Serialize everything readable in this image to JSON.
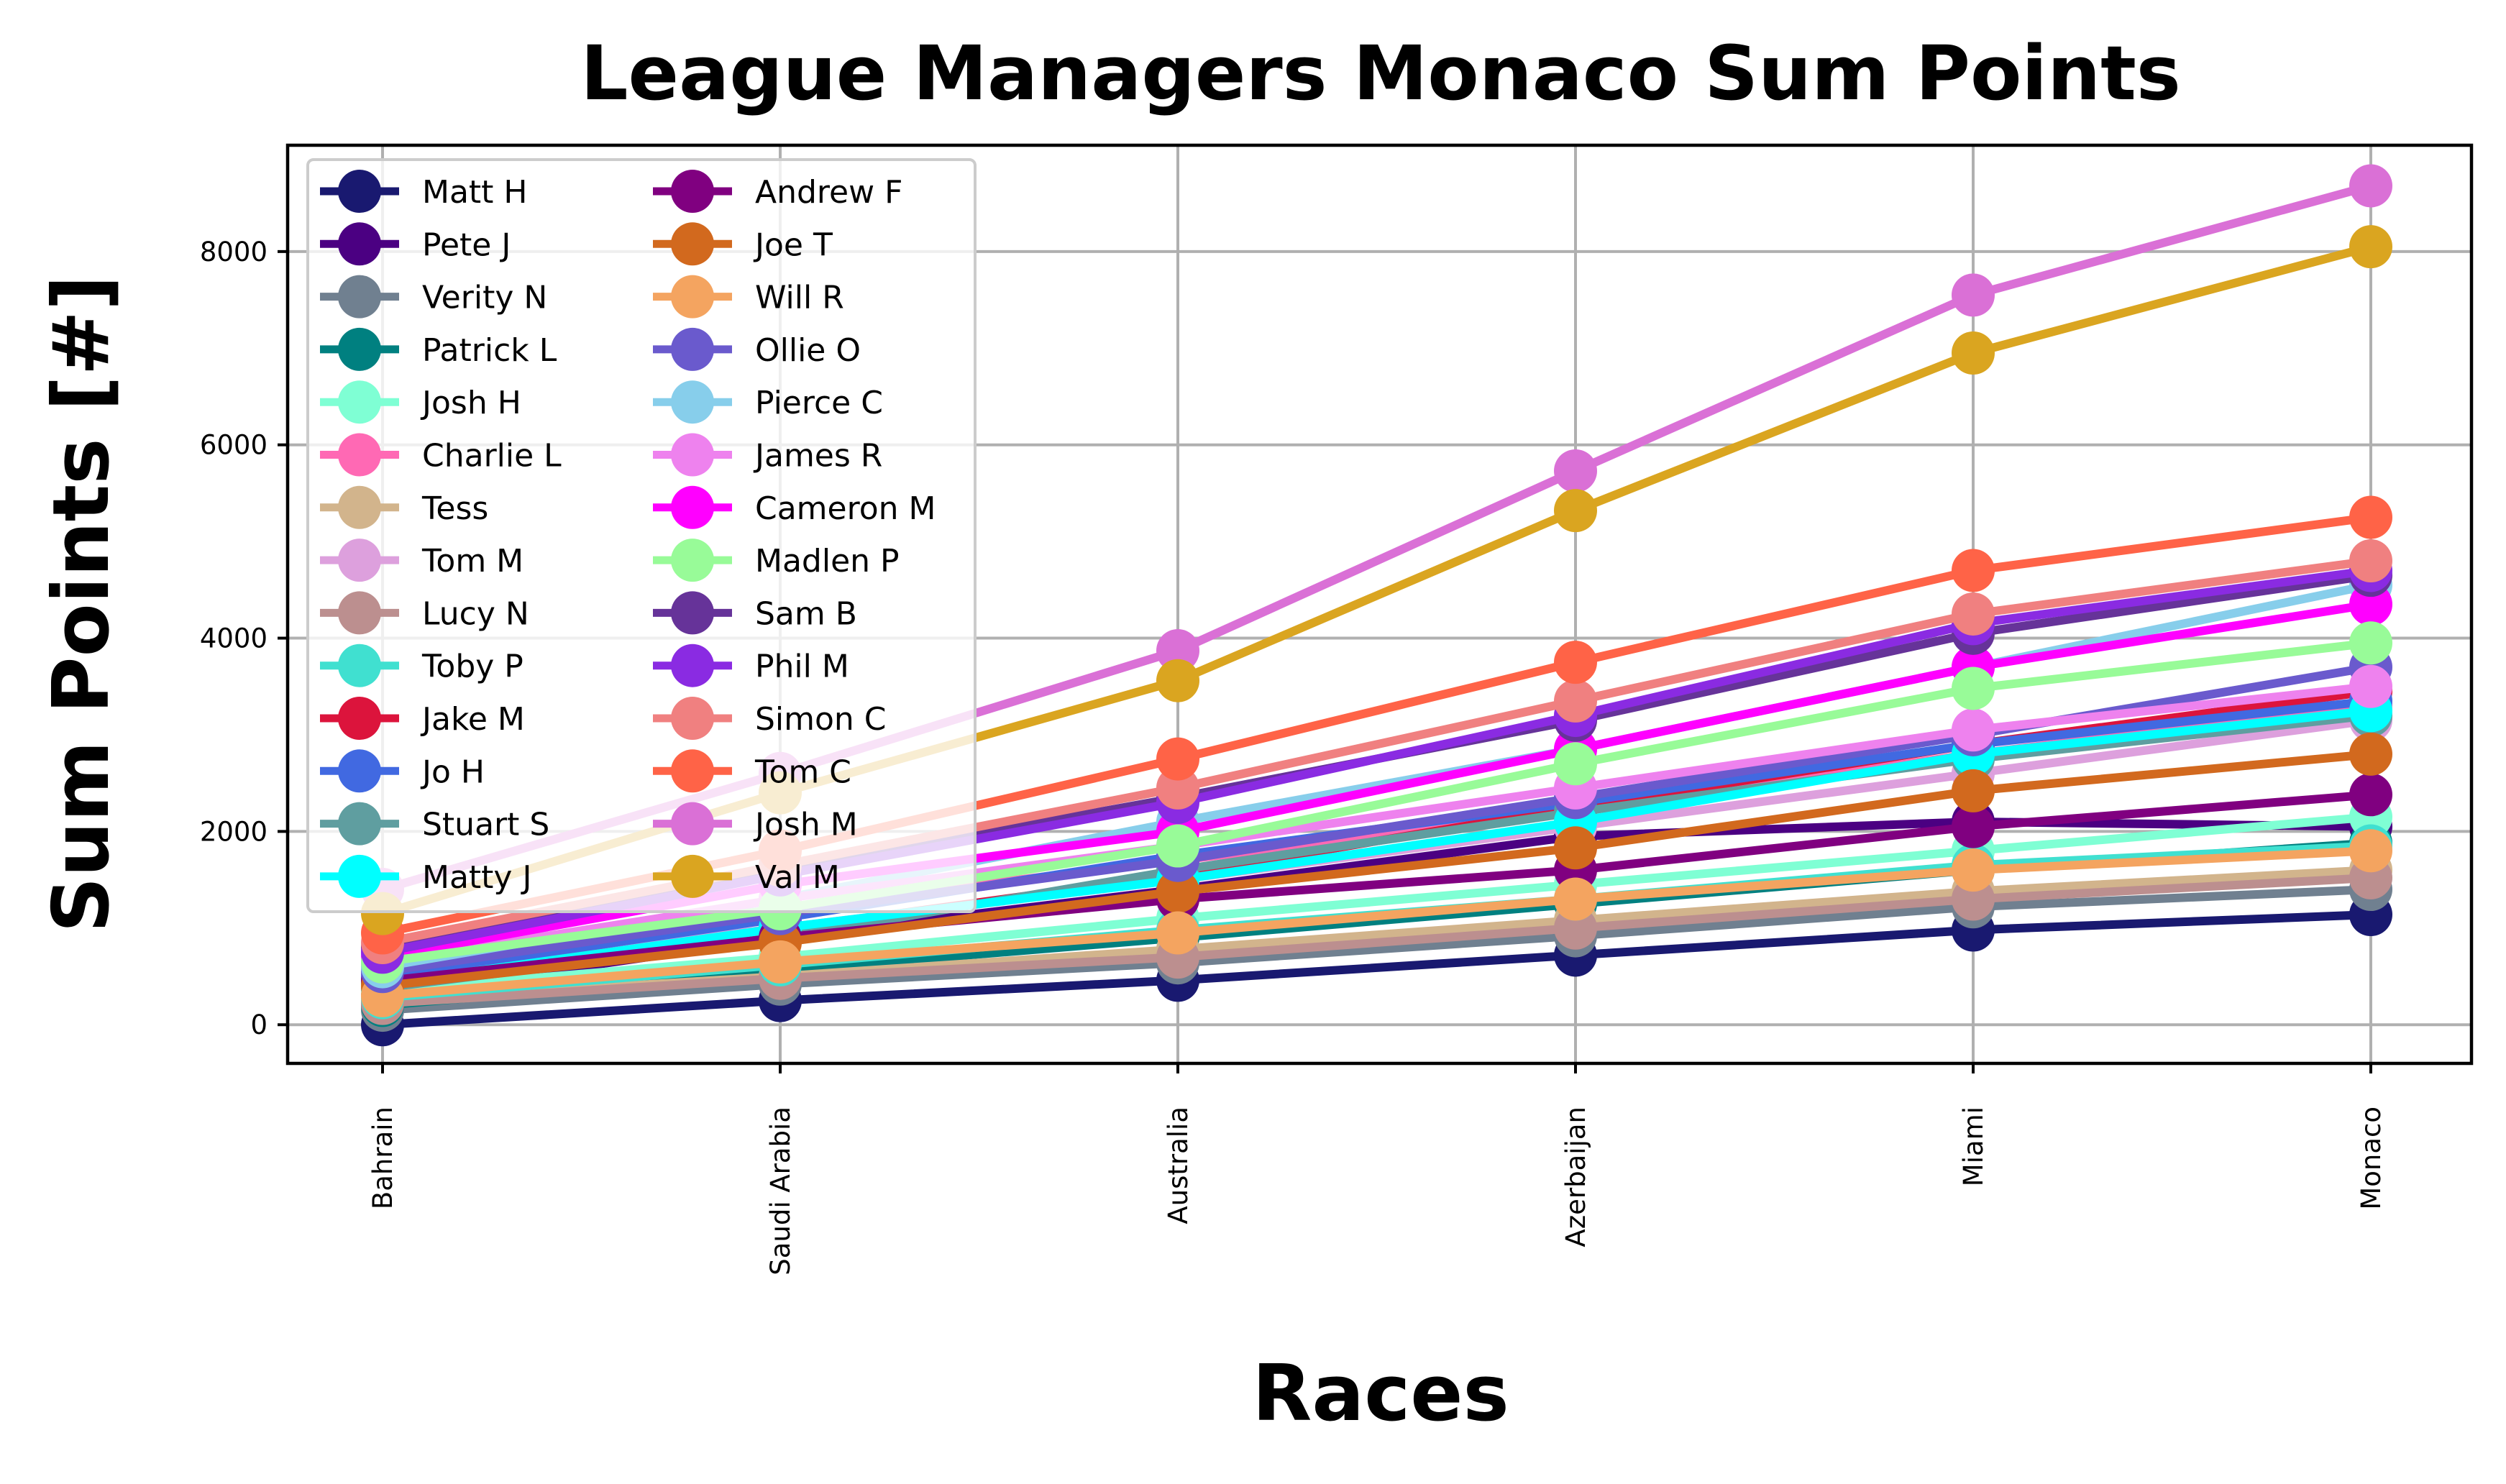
{
  "chart_data": {
    "type": "line",
    "title": "League Managers Monaco Sum Points",
    "xlabel": "Races",
    "ylabel": "Sum Points [#]",
    "categories": [
      "Bahrain",
      "Saudi Arabia",
      "Australia",
      "Azerbaijan",
      "Miami",
      "Monaco"
    ],
    "ylim": [
      -400,
      9100
    ],
    "yticks": [
      0,
      2000,
      4000,
      6000,
      8000
    ],
    "ytick_labels": [
      "0",
      "2000",
      "4000",
      "6000",
      "8000"
    ],
    "grid": true,
    "legend_position": "upper-left",
    "legend_columns": 2,
    "series": [
      {
        "name": "Matt H",
        "color": "#191970",
        "values": [
          0,
          250,
          460,
          720,
          980,
          1140
        ]
      },
      {
        "name": "Pete J",
        "color": "#4b0082",
        "values": [
          300,
          900,
          1400,
          1950,
          2100,
          2050
        ]
      },
      {
        "name": "Verity N",
        "color": "#708090",
        "values": [
          150,
          420,
          640,
          920,
          1220,
          1400
        ]
      },
      {
        "name": "Patrick L",
        "color": "#008080",
        "values": [
          200,
          560,
          900,
          1250,
          1600,
          1880
        ]
      },
      {
        "name": "Josh H",
        "color": "#7fffd4",
        "values": [
          350,
          700,
          1100,
          1450,
          1800,
          2150
        ]
      },
      {
        "name": "Charlie L",
        "color": "#ff69b4",
        "values": [
          600,
          1200,
          1700,
          2200,
          2800,
          3300
        ]
      },
      {
        "name": "Tess",
        "color": "#d2b48c",
        "values": [
          250,
          500,
          780,
          1080,
          1380,
          1600
        ]
      },
      {
        "name": "Tom M",
        "color": "#dda0dd",
        "values": [
          500,
          1000,
          1500,
          2050,
          2600,
          3150
        ]
      },
      {
        "name": "Lucy N",
        "color": "#bc8f8f",
        "values": [
          220,
          480,
          700,
          1000,
          1300,
          1520
        ]
      },
      {
        "name": "Toby P",
        "color": "#40e0d0",
        "values": [
          280,
          620,
          980,
          1300,
          1650,
          1850
        ]
      },
      {
        "name": "Jake M",
        "color": "#dc143c",
        "values": [
          450,
          980,
          1550,
          2250,
          2900,
          3450
        ]
      },
      {
        "name": "Jo H",
        "color": "#4169e1",
        "values": [
          500,
          1100,
          1750,
          2300,
          2900,
          3350
        ]
      },
      {
        "name": "Stuart S",
        "color": "#5f9ea0",
        "values": [
          380,
          900,
          1600,
          2200,
          2750,
          3200
        ]
      },
      {
        "name": "Matty J",
        "color": "#00ffff",
        "values": [
          420,
          1000,
          1500,
          2100,
          2800,
          3250
        ]
      },
      {
        "name": "Andrew F",
        "color": "#800080",
        "values": [
          450,
          900,
          1300,
          1600,
          2050,
          2380
        ]
      },
      {
        "name": "Joe T",
        "color": "#d2691e",
        "values": [
          400,
          850,
          1380,
          1830,
          2420,
          2800
        ]
      },
      {
        "name": "Will R",
        "color": "#f4a460",
        "values": [
          300,
          650,
          950,
          1300,
          1600,
          1800
        ]
      },
      {
        "name": "Ollie O",
        "color": "#6a5acd",
        "values": [
          550,
          1150,
          1700,
          2350,
          3000,
          3700
        ]
      },
      {
        "name": "Pierce C",
        "color": "#87ceeb",
        "values": [
          600,
          1300,
          2100,
          2850,
          3700,
          4550
        ]
      },
      {
        "name": "James R",
        "color": "#ee82ee",
        "values": [
          650,
          1300,
          1850,
          2450,
          3050,
          3500
        ]
      },
      {
        "name": "Cameron M",
        "color": "#ff00ff",
        "values": [
          700,
          1450,
          2000,
          2850,
          3700,
          4350
        ]
      },
      {
        "name": "Madlen P",
        "color": "#98fb98",
        "values": [
          650,
          1200,
          1850,
          2700,
          3480,
          3950
        ]
      },
      {
        "name": "Sam B",
        "color": "#663399",
        "values": [
          800,
          1600,
          2350,
          3150,
          4050,
          4650
        ]
      },
      {
        "name": "Phil M",
        "color": "#8a2be2",
        "values": [
          750,
          1550,
          2300,
          3200,
          4150,
          4700
        ]
      },
      {
        "name": "Simon C",
        "color": "#f08080",
        "values": [
          850,
          1650,
          2450,
          3350,
          4250,
          4800
        ]
      },
      {
        "name": "Tom C",
        "color": "#ff6347",
        "values": [
          950,
          1800,
          2750,
          3750,
          4700,
          5250
        ]
      },
      {
        "name": "Josh M",
        "color": "#da70d6",
        "values": [
          1400,
          2600,
          3870,
          5730,
          7550,
          8680
        ]
      },
      {
        "name": "Val M",
        "color": "#daa520",
        "values": [
          1150,
          2400,
          3560,
          5320,
          6950,
          8050
        ]
      }
    ]
  }
}
